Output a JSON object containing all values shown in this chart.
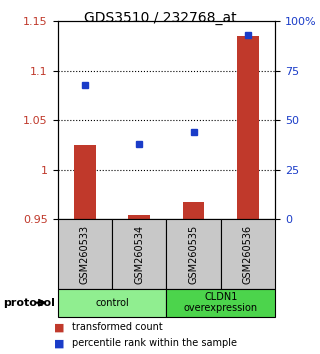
{
  "title": "GDS3510 / 232768_at",
  "samples": [
    "GSM260533",
    "GSM260534",
    "GSM260535",
    "GSM260536"
  ],
  "red_values": [
    1.025,
    0.955,
    0.968,
    1.135
  ],
  "blue_values": [
    68,
    38,
    44,
    93
  ],
  "ylim_left": [
    0.95,
    1.15
  ],
  "ylim_right": [
    0,
    100
  ],
  "yticks_left": [
    0.95,
    1.0,
    1.05,
    1.1,
    1.15
  ],
  "yticks_right": [
    0,
    25,
    50,
    75,
    100
  ],
  "ytick_labels_left": [
    "0.95",
    "1",
    "1.05",
    "1.1",
    "1.15"
  ],
  "ytick_labels_right": [
    "0",
    "25",
    "50",
    "75",
    "100%"
  ],
  "bar_color": "#c0392b",
  "dot_color": "#1a3cc8",
  "bar_width": 0.4,
  "protocol_groups": [
    {
      "label": "control",
      "n": 2,
      "color": "#90ee90"
    },
    {
      "label": "CLDN1\noverexpression",
      "n": 2,
      "color": "#4cd44c"
    }
  ],
  "legend_red": "transformed count",
  "legend_blue": "percentile rank within the sample",
  "protocol_label": "protocol",
  "plot_bg": "#ffffff",
  "gridline_vals": [
    1.0,
    1.05,
    1.1
  ],
  "sample_box_color": "#c8c8c8"
}
